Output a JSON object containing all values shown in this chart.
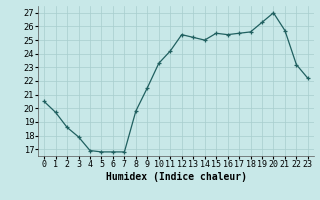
{
  "x": [
    0,
    1,
    2,
    3,
    4,
    5,
    6,
    7,
    8,
    9,
    10,
    11,
    12,
    13,
    14,
    15,
    16,
    17,
    18,
    19,
    20,
    21,
    22,
    23
  ],
  "y": [
    20.5,
    19.7,
    18.6,
    17.9,
    16.9,
    16.8,
    16.8,
    16.8,
    19.8,
    21.5,
    23.3,
    24.2,
    25.4,
    25.2,
    25.0,
    25.5,
    25.4,
    25.5,
    25.6,
    26.3,
    27.0,
    25.7,
    23.2,
    22.2
  ],
  "xlabel": "Humidex (Indice chaleur)",
  "xlim": [
    -0.5,
    23.5
  ],
  "ylim": [
    16.5,
    27.5
  ],
  "yticks": [
    17,
    18,
    19,
    20,
    21,
    22,
    23,
    24,
    25,
    26,
    27
  ],
  "xtick_labels": [
    "0",
    "1",
    "2",
    "3",
    "4",
    "5",
    "6",
    "7",
    "8",
    "9",
    "10",
    "11",
    "12",
    "13",
    "14",
    "15",
    "16",
    "17",
    "18",
    "19",
    "20",
    "21",
    "22",
    "23"
  ],
  "line_color": "#206060",
  "bg_color": "#c8e8e8",
  "grid_color": "#a8cece",
  "label_fontsize": 7,
  "tick_fontsize": 6
}
